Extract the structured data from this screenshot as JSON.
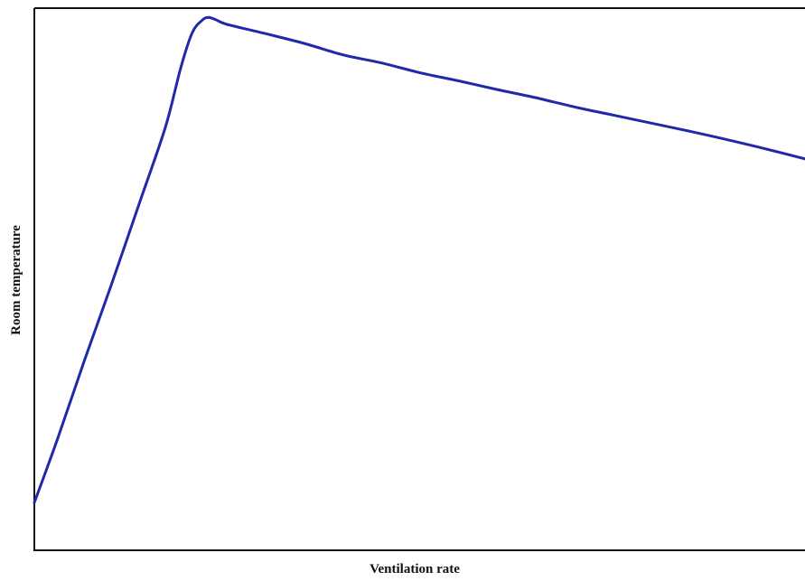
{
  "chart_data": {
    "type": "line",
    "title": "",
    "xlabel": "Ventilation rate",
    "ylabel": "Room temperature",
    "xlim": [
      0,
      100
    ],
    "ylim": [
      0,
      100
    ],
    "x_ticks_shown": false,
    "y_ticks_shown": false,
    "grid": false,
    "legend": "none",
    "series": [
      {
        "color": "#1f2aa8",
        "points": [
          [
            0.0,
            8.8
          ],
          [
            3.0,
            20.5
          ],
          [
            6.5,
            35.0
          ],
          [
            10.0,
            49.0
          ],
          [
            13.5,
            63.5
          ],
          [
            17.0,
            78.0
          ],
          [
            19.0,
            89.0
          ],
          [
            20.5,
            95.5
          ],
          [
            21.8,
            97.8
          ],
          [
            22.6,
            98.3
          ],
          [
            23.5,
            97.9
          ],
          [
            25.0,
            97.0
          ],
          [
            30.0,
            95.3
          ],
          [
            35.0,
            93.5
          ],
          [
            40.0,
            91.4
          ],
          [
            45.0,
            89.9
          ],
          [
            50.0,
            88.1
          ],
          [
            55.0,
            86.6
          ],
          [
            60.0,
            85.0
          ],
          [
            65.0,
            83.5
          ],
          [
            70.0,
            81.8
          ],
          [
            75.0,
            80.3
          ],
          [
            80.0,
            78.8
          ],
          [
            85.0,
            77.3
          ],
          [
            90.0,
            75.7
          ],
          [
            95.0,
            74.0
          ],
          [
            100.0,
            72.2
          ]
        ]
      }
    ]
  }
}
